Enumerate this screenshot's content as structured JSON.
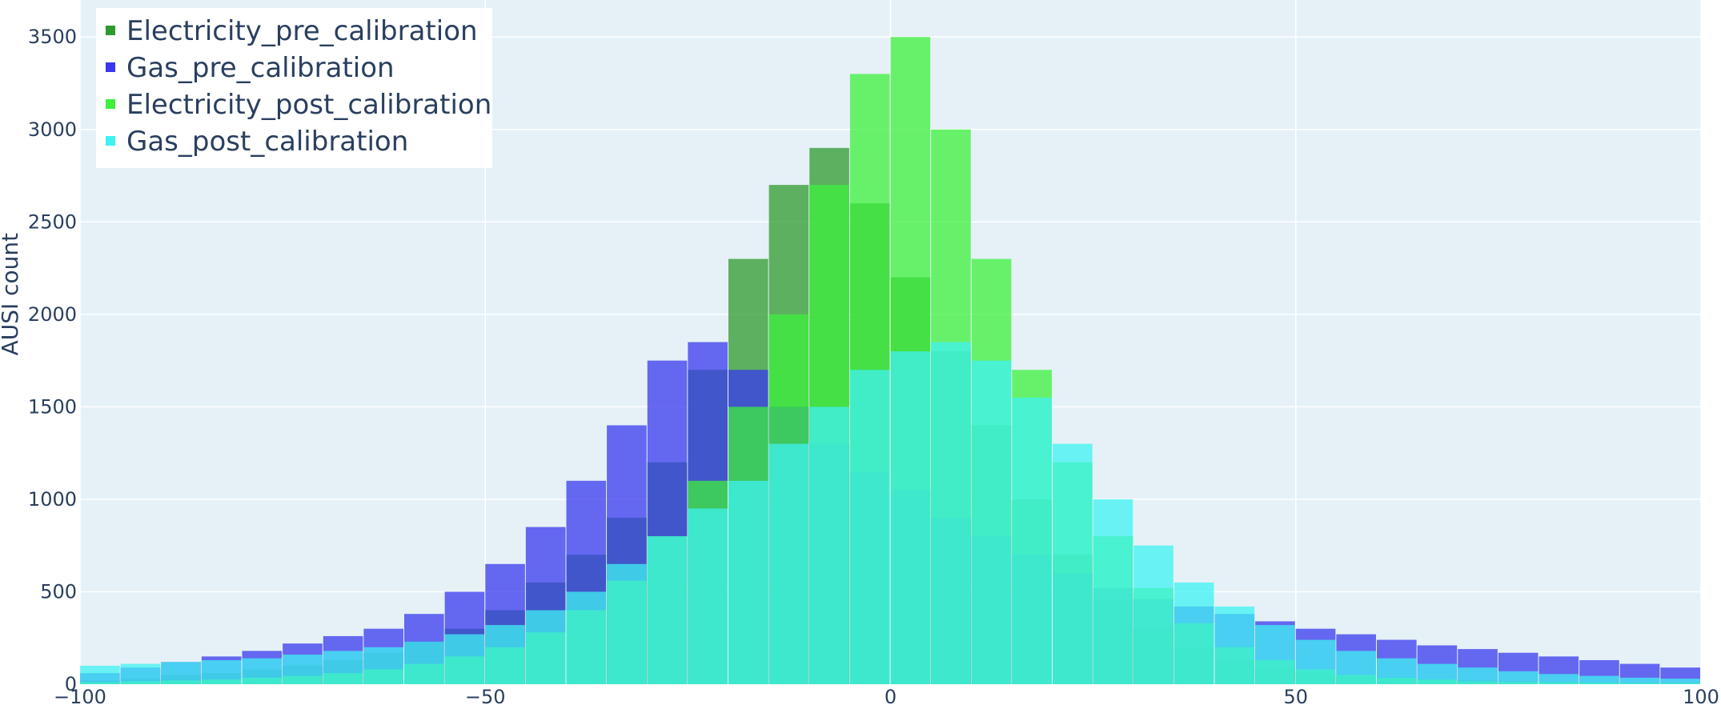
{
  "chart_data": {
    "type": "bar",
    "barmode": "overlay",
    "title": "",
    "xlabel": "",
    "ylabel": "AUSI count",
    "xlim": [
      -100,
      100
    ],
    "ylim": [
      0,
      3700
    ],
    "x_ticks": [
      -100,
      -50,
      0,
      50,
      100
    ],
    "x_tick_labels": [
      "−100",
      "−50",
      "0",
      "50",
      "100"
    ],
    "y_ticks": [
      0,
      500,
      1000,
      1500,
      2000,
      2500,
      3000,
      3500
    ],
    "y_tick_labels": [
      "0",
      "500",
      "1000",
      "1500",
      "2000",
      "2500",
      "3000",
      "3500"
    ],
    "grid": true,
    "legend_position": "top-left",
    "background_color": "#e5f1f7",
    "bin_centers_note": "bins of width 5 between -100 and 100; values read from envelope",
    "x": [
      -97.5,
      -92.5,
      -87.5,
      -82.5,
      -77.5,
      -72.5,
      -67.5,
      -62.5,
      -57.5,
      -52.5,
      -47.5,
      -42.5,
      -37.5,
      -32.5,
      -27.5,
      -22.5,
      -17.5,
      -12.5,
      -7.5,
      -2.5,
      2.5,
      7.5,
      12.5,
      17.5,
      22.5,
      27.5,
      32.5,
      37.5,
      42.5,
      47.5,
      52.5,
      57.5,
      62.5,
      67.5,
      72.5,
      77.5,
      82.5,
      87.5,
      92.5,
      97.5
    ],
    "series": [
      {
        "name": "Electricity_pre_calibration",
        "color": "#2e9a2e",
        "values": [
          20,
          30,
          50,
          60,
          80,
          100,
          130,
          170,
          230,
          300,
          400,
          550,
          700,
          900,
          1200,
          1700,
          2300,
          2700,
          2900,
          2600,
          2200,
          1800,
          1400,
          1000,
          700,
          450,
          300,
          200,
          130,
          90,
          60,
          45,
          35,
          25,
          20,
          15,
          10,
          10,
          8,
          5
        ]
      },
      {
        "name": "Gas_pre_calibration",
        "color": "#3838ee",
        "values": [
          60,
          90,
          120,
          150,
          180,
          220,
          260,
          300,
          380,
          500,
          650,
          850,
          1100,
          1400,
          1750,
          1850,
          1700,
          1500,
          1300,
          1150,
          1050,
          900,
          800,
          700,
          600,
          520,
          460,
          420,
          380,
          340,
          300,
          270,
          240,
          210,
          190,
          170,
          150,
          130,
          110,
          90
        ]
      },
      {
        "name": "Electricity_post_calibration",
        "color": "#3cf03c",
        "values": [
          10,
          15,
          20,
          25,
          35,
          45,
          60,
          80,
          110,
          150,
          200,
          280,
          400,
          560,
          800,
          1100,
          1500,
          2000,
          2700,
          3300,
          3500,
          3000,
          2300,
          1700,
          1200,
          800,
          520,
          330,
          200,
          130,
          80,
          50,
          35,
          25,
          15,
          12,
          10,
          8,
          6,
          5
        ]
      },
      {
        "name": "Gas_post_calibration",
        "color": "#3ff2f2",
        "values": [
          100,
          110,
          120,
          130,
          140,
          160,
          180,
          200,
          230,
          270,
          320,
          400,
          500,
          650,
          800,
          950,
          1100,
          1300,
          1500,
          1700,
          1800,
          1850,
          1750,
          1550,
          1300,
          1000,
          750,
          550,
          420,
          320,
          240,
          180,
          140,
          110,
          90,
          70,
          55,
          45,
          35,
          30
        ]
      }
    ]
  }
}
